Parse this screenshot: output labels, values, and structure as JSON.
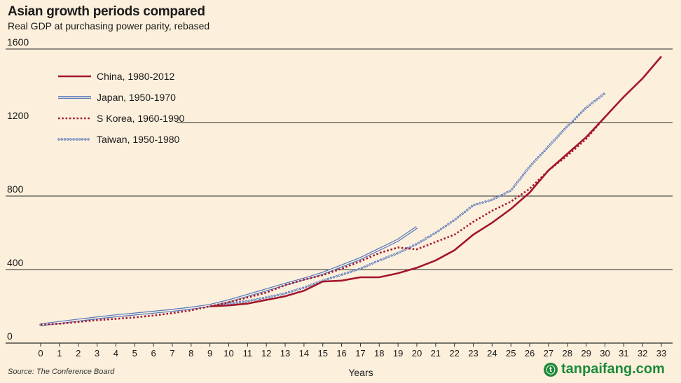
{
  "chart_data": {
    "type": "line",
    "title": "Asian growth periods compared",
    "subtitle": "Real GDP at purchasing power parity, rebased",
    "xlabel": "Years",
    "ylabel": "",
    "xlim": [
      0,
      33
    ],
    "ylim": [
      0,
      1600
    ],
    "yticks": [
      0,
      400,
      800,
      1200,
      1600
    ],
    "xticks": [
      0,
      1,
      2,
      3,
      4,
      5,
      6,
      7,
      8,
      9,
      10,
      11,
      12,
      13,
      14,
      15,
      16,
      17,
      18,
      19,
      20,
      21,
      22,
      23,
      24,
      25,
      26,
      27,
      28,
      29,
      30,
      31,
      32,
      33
    ],
    "series": [
      {
        "name": "China, 1980-2012",
        "style": "solid",
        "color": "#a3162b",
        "x": [
          9,
          10,
          11,
          12,
          13,
          14,
          15,
          16,
          17,
          18,
          19,
          20,
          21,
          22,
          23,
          24,
          25,
          26,
          27,
          28,
          29,
          30,
          31,
          32,
          33
        ],
        "values": [
          200,
          205,
          215,
          235,
          255,
          285,
          335,
          340,
          358,
          358,
          380,
          410,
          450,
          505,
          590,
          655,
          730,
          820,
          940,
          1030,
          1120,
          1230,
          1340,
          1440,
          1560
        ]
      },
      {
        "name": "Japan, 1950-1970",
        "style": "double",
        "color": "#5577bb",
        "x": [
          0,
          1,
          2,
          3,
          4,
          5,
          6,
          7,
          8,
          9,
          10,
          11,
          12,
          13,
          14,
          15,
          16,
          17,
          18,
          19,
          20
        ],
        "values": [
          100,
          112,
          125,
          137,
          148,
          158,
          168,
          178,
          190,
          205,
          230,
          260,
          290,
          320,
          348,
          380,
          420,
          460,
          510,
          560,
          630
        ]
      },
      {
        "name": "S Korea, 1960-1990",
        "style": "dotted",
        "color": "#a3162b",
        "x": [
          0,
          1,
          2,
          3,
          4,
          5,
          6,
          7,
          8,
          9,
          10,
          11,
          12,
          13,
          14,
          15,
          16,
          17,
          18,
          19,
          20,
          21,
          22,
          23,
          24,
          25,
          26,
          27,
          28,
          29,
          30
        ],
        "values": [
          100,
          105,
          115,
          125,
          132,
          140,
          150,
          163,
          178,
          200,
          222,
          248,
          275,
          315,
          345,
          370,
          405,
          445,
          490,
          520,
          510,
          550,
          590,
          660,
          720,
          770,
          840,
          940,
          1020,
          1110,
          1230
        ]
      },
      {
        "name": "Taiwan, 1950-1980",
        "style": "circles",
        "color": "#5577bb",
        "x": [
          0,
          1,
          2,
          3,
          4,
          5,
          6,
          7,
          8,
          9,
          10,
          11,
          12,
          13,
          14,
          15,
          16,
          17,
          18,
          19,
          20,
          21,
          22,
          23,
          24,
          25,
          26,
          27,
          28,
          29,
          30
        ],
        "values": [
          100,
          112,
          123,
          135,
          147,
          158,
          168,
          180,
          192,
          204,
          215,
          228,
          248,
          270,
          302,
          340,
          372,
          405,
          450,
          490,
          540,
          600,
          670,
          750,
          780,
          830,
          960,
          1070,
          1180,
          1280,
          1360
        ]
      }
    ]
  },
  "source": "Source: The Conference Board",
  "watermark": "tanpaifang.com",
  "watermark_logo": "ⓣ"
}
